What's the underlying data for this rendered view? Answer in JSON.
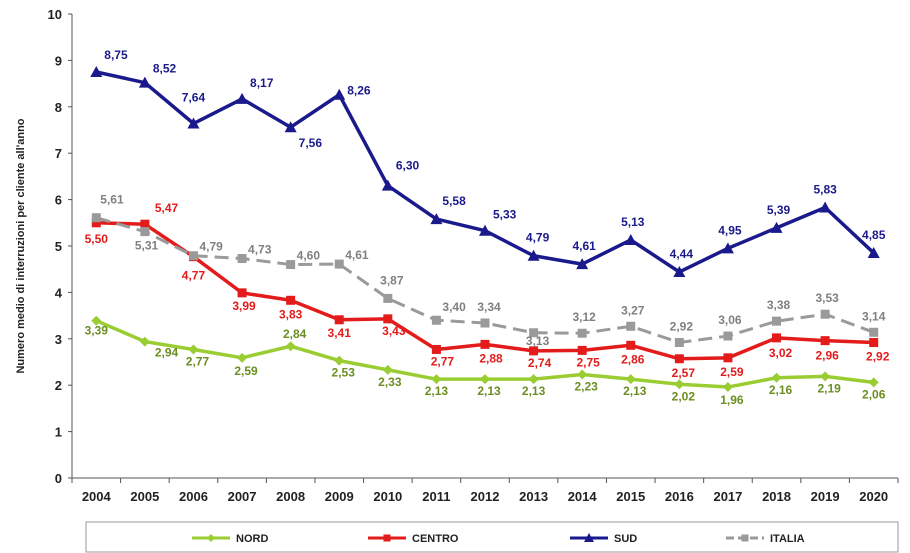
{
  "chart_data": {
    "type": "line",
    "title": "",
    "xlabel": "",
    "ylabel": "Numero medio di interruzioni per cliente all'anno",
    "ylim": [
      0,
      10
    ],
    "yticks": [
      "0",
      "1",
      "2",
      "3",
      "4",
      "5",
      "6",
      "7",
      "8",
      "9",
      "10"
    ],
    "x": [
      "2004",
      "2005",
      "2006",
      "2007",
      "2008",
      "2009",
      "2010",
      "2011",
      "2012",
      "2013",
      "2014",
      "2015",
      "2016",
      "2017",
      "2018",
      "2019",
      "2020"
    ],
    "grid": false,
    "legend": "bottom",
    "series": [
      {
        "name": "NORD",
        "color": "#9acd32",
        "dash": false,
        "marker": "diamond",
        "values": [
          3.39,
          2.94,
          2.77,
          2.59,
          2.84,
          2.53,
          2.33,
          2.13,
          2.13,
          2.13,
          2.23,
          2.13,
          2.02,
          1.96,
          2.16,
          2.19,
          2.06
        ],
        "labels": [
          "3,39",
          "2,94",
          "2,77",
          "2,59",
          "2,84",
          "2,53",
          "2,33",
          "2,13",
          "2,13",
          "2,13",
          "2,23",
          "2,13",
          "2,02",
          "1,96",
          "2,16",
          "2,19",
          "2,06"
        ],
        "label_color": "#6b8e23"
      },
      {
        "name": "CENTRO",
        "color": "#e31b1b",
        "dash": false,
        "marker": "square",
        "values": [
          5.5,
          5.47,
          4.77,
          3.99,
          3.83,
          3.41,
          3.43,
          2.77,
          2.88,
          2.74,
          2.75,
          2.86,
          2.57,
          2.59,
          3.02,
          2.96,
          2.92
        ],
        "labels": [
          "5,50",
          "5,47",
          "4,77",
          "3,99",
          "3,83",
          "3,41",
          "3,43",
          "2,77",
          "2,88",
          "2,74",
          "2,75",
          "2,86",
          "2,57",
          "2,59",
          "3,02",
          "2,96",
          "2,92"
        ],
        "label_color": "#e31b1b"
      },
      {
        "name": "SUD",
        "color": "#1a1a8c",
        "dash": false,
        "marker": "triangle",
        "values": [
          8.75,
          8.52,
          7.64,
          8.17,
          7.56,
          8.26,
          6.3,
          5.58,
          5.33,
          4.79,
          4.61,
          5.13,
          4.44,
          4.95,
          5.39,
          5.83,
          4.85
        ],
        "labels": [
          "8,75",
          "8,52",
          "7,64",
          "8,17",
          "7,56",
          "8,26",
          "6,30",
          "5,58",
          "5,33",
          "4,79",
          "4,61",
          "5,13",
          "4,44",
          "4,95",
          "5,39",
          "5,83",
          "4,85"
        ],
        "label_color": "#1a1a8c"
      },
      {
        "name": "ITALIA",
        "color": "#9a9a9a",
        "dash": true,
        "marker": "square",
        "values": [
          5.61,
          5.31,
          4.79,
          4.73,
          4.6,
          4.61,
          3.87,
          3.4,
          3.34,
          3.13,
          3.12,
          3.27,
          2.92,
          3.06,
          3.38,
          3.53,
          3.14
        ],
        "labels": [
          "5,61",
          "5,31",
          "4,79",
          "4,73",
          "4,60",
          "4,61",
          "3,87",
          "3,40",
          "3,34",
          "3,13",
          "3,12",
          "3,27",
          "2,92",
          "3,06",
          "3,38",
          "3,53",
          "3,14"
        ],
        "label_color": "#808080"
      }
    ]
  }
}
